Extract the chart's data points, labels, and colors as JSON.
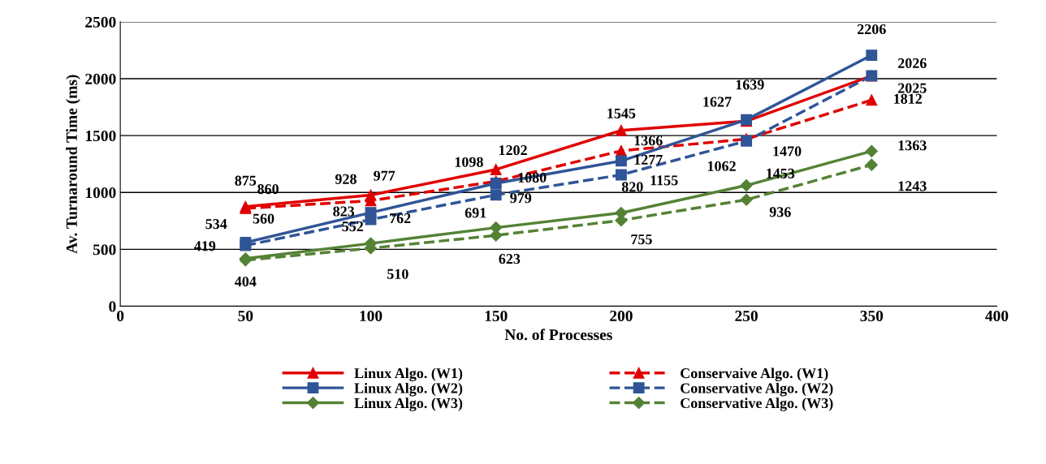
{
  "chart_data": {
    "type": "line",
    "xlabel": "No. of Processes",
    "ylabel": "Av. Turnaround Time (ms)",
    "categories": [
      "0",
      "50",
      "100",
      "150",
      "200",
      "250",
      "350",
      "400"
    ],
    "ylim": [
      0,
      2500
    ],
    "yticks": [
      0,
      500,
      1000,
      1500,
      2000,
      2500
    ],
    "grid": "y",
    "legend": "bottom",
    "data_labels": true,
    "series": [
      {
        "name": "Linux Algo. (W1)",
        "color": "#e00000",
        "marker": "triangle",
        "line_style": "solid",
        "values": [
          null,
          875,
          977,
          1202,
          1545,
          1627,
          2025,
          null
        ]
      },
      {
        "name": "Conservaive Algo. (W1)",
        "color": "#e00000",
        "marker": "triangle",
        "line_style": "dashed",
        "values": [
          null,
          860,
          928,
          1098,
          1366,
          1470,
          1812,
          null
        ]
      },
      {
        "name": "Linux Algo. (W2)",
        "color": "#2f5597",
        "marker": "square",
        "line_style": "solid",
        "values": [
          null,
          560,
          823,
          1080,
          1277,
          1639,
          2206,
          null
        ]
      },
      {
        "name": "Conservative Algo. (W2)",
        "color": "#2f5597",
        "marker": "square",
        "line_style": "dashed",
        "values": [
          null,
          534,
          762,
          979,
          1155,
          1453,
          2026,
          null
        ]
      },
      {
        "name": "Linux Algo. (W3)",
        "color": "#548235",
        "marker": "diamond",
        "line_style": "solid",
        "values": [
          null,
          419,
          552,
          691,
          820,
          1062,
          1363,
          null
        ]
      },
      {
        "name": "Conservative Algo. (W3)",
        "color": "#548235",
        "marker": "diamond",
        "line_style": "dashed",
        "values": [
          null,
          404,
          510,
          623,
          755,
          936,
          1243,
          null
        ]
      }
    ]
  }
}
